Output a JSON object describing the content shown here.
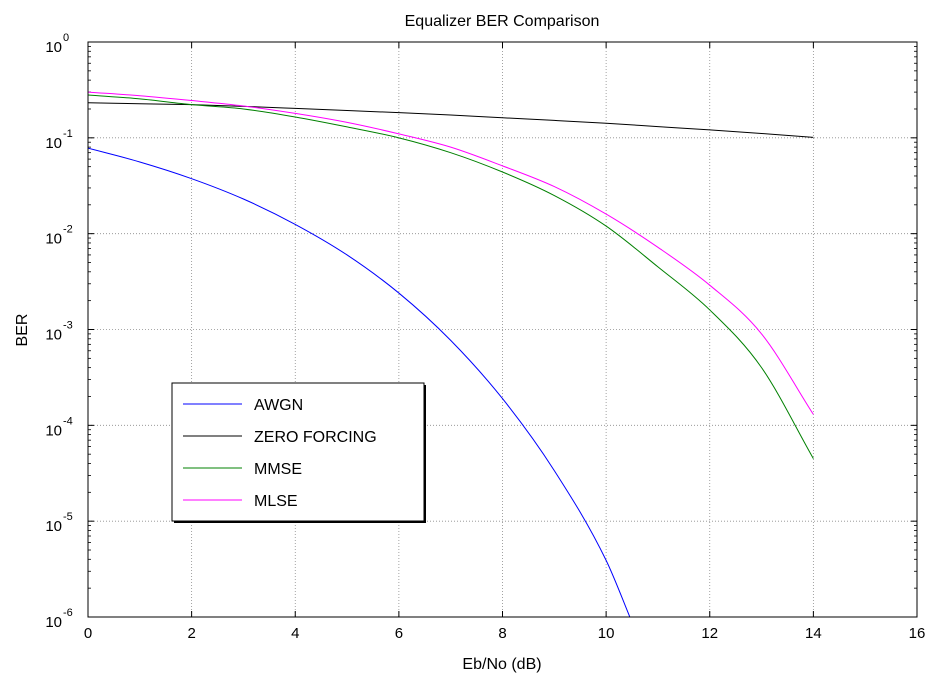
{
  "chart_data": {
    "type": "line",
    "title": "Equalizer BER Comparison",
    "xlabel": "Eb/No (dB)",
    "ylabel": "BER",
    "xlim": [
      0,
      16
    ],
    "ylim": [
      1e-06,
      1
    ],
    "yscale": "log",
    "grid": true,
    "legend_position": "lower-left",
    "xticks": [
      "0",
      "2",
      "4",
      "6",
      "8",
      "10",
      "12",
      "14",
      "16"
    ],
    "yticks": [
      {
        "base": "10",
        "exp": "0"
      },
      {
        "base": "10",
        "exp": "-1"
      },
      {
        "base": "10",
        "exp": "-2"
      },
      {
        "base": "10",
        "exp": "-3"
      },
      {
        "base": "10",
        "exp": "-4"
      },
      {
        "base": "10",
        "exp": "-5"
      },
      {
        "base": "10",
        "exp": "-6"
      }
    ],
    "series": [
      {
        "name": "AWGN",
        "color": "#0000ff",
        "x": [
          0,
          1,
          2,
          3,
          4,
          5,
          6,
          7,
          8,
          9,
          10,
          10.5
        ],
        "y": [
          0.078,
          0.056,
          0.0375,
          0.023,
          0.0125,
          0.006,
          0.0024,
          0.00077,
          0.00019,
          3.37e-05,
          3.9e-06,
          8.8e-07
        ]
      },
      {
        "name": "ZERO FORCING",
        "color": "#000000",
        "x": [
          0,
          1,
          2,
          3,
          4,
          5,
          6,
          7,
          8,
          9,
          10,
          11,
          12,
          13,
          14
        ],
        "y": [
          0.232,
          0.227,
          0.222,
          0.213,
          0.203,
          0.193,
          0.183,
          0.173,
          0.162,
          0.152,
          0.142,
          0.131,
          0.121,
          0.111,
          0.101
        ]
      },
      {
        "name": "MMSE",
        "color": "#008000",
        "x": [
          0,
          1,
          2,
          3,
          4,
          5,
          6,
          7,
          8,
          9,
          10,
          11,
          12,
          13,
          14
        ],
        "y": [
          0.28,
          0.255,
          0.222,
          0.2,
          0.165,
          0.13,
          0.1,
          0.07,
          0.044,
          0.025,
          0.012,
          0.0045,
          0.0016,
          0.0004,
          4.5e-05
        ]
      },
      {
        "name": "MLSE",
        "color": "#ff00ff",
        "x": [
          0,
          1,
          2,
          3,
          4,
          5,
          6,
          7,
          8,
          9,
          10,
          11,
          12,
          13,
          14
        ],
        "y": [
          0.3,
          0.275,
          0.245,
          0.215,
          0.18,
          0.145,
          0.11,
          0.08,
          0.051,
          0.031,
          0.016,
          0.0072,
          0.0029,
          0.0009,
          0.00013
        ]
      }
    ]
  }
}
